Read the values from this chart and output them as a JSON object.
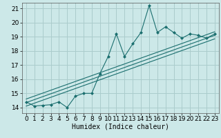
{
  "xlabel": "Humidex (Indice chaleur)",
  "bg_color": "#cce8e8",
  "grid_color": "#aacccc",
  "line_color": "#1a6e6e",
  "xlim": [
    -0.5,
    23.5
  ],
  "ylim": [
    13.6,
    21.4
  ],
  "xticks": [
    0,
    1,
    2,
    3,
    4,
    5,
    6,
    7,
    8,
    9,
    10,
    11,
    12,
    13,
    14,
    15,
    16,
    17,
    18,
    19,
    20,
    21,
    22,
    23
  ],
  "yticks": [
    14,
    15,
    16,
    17,
    18,
    19,
    20,
    21
  ],
  "data_x": [
    0,
    1,
    2,
    3,
    4,
    5,
    6,
    7,
    8,
    9,
    10,
    11,
    12,
    13,
    14,
    15,
    16,
    17,
    18,
    19,
    20,
    21,
    22,
    23
  ],
  "data_y": [
    14.4,
    14.1,
    14.15,
    14.2,
    14.4,
    14.0,
    14.8,
    15.0,
    15.0,
    16.4,
    17.6,
    19.2,
    17.6,
    18.5,
    19.3,
    21.2,
    19.3,
    19.7,
    19.3,
    18.9,
    19.2,
    19.1,
    18.9,
    19.2
  ],
  "trend1_x": [
    0,
    23
  ],
  "trend1_y": [
    14.1,
    18.85
  ],
  "trend2_x": [
    0,
    23
  ],
  "trend2_y": [
    14.35,
    19.1
  ],
  "trend3_x": [
    0,
    23
  ],
  "trend3_y": [
    14.6,
    19.35
  ],
  "marker": "D",
  "markersize": 2.0,
  "linewidth": 0.8,
  "xlabel_fontsize": 7,
  "tick_fontsize": 6.5
}
